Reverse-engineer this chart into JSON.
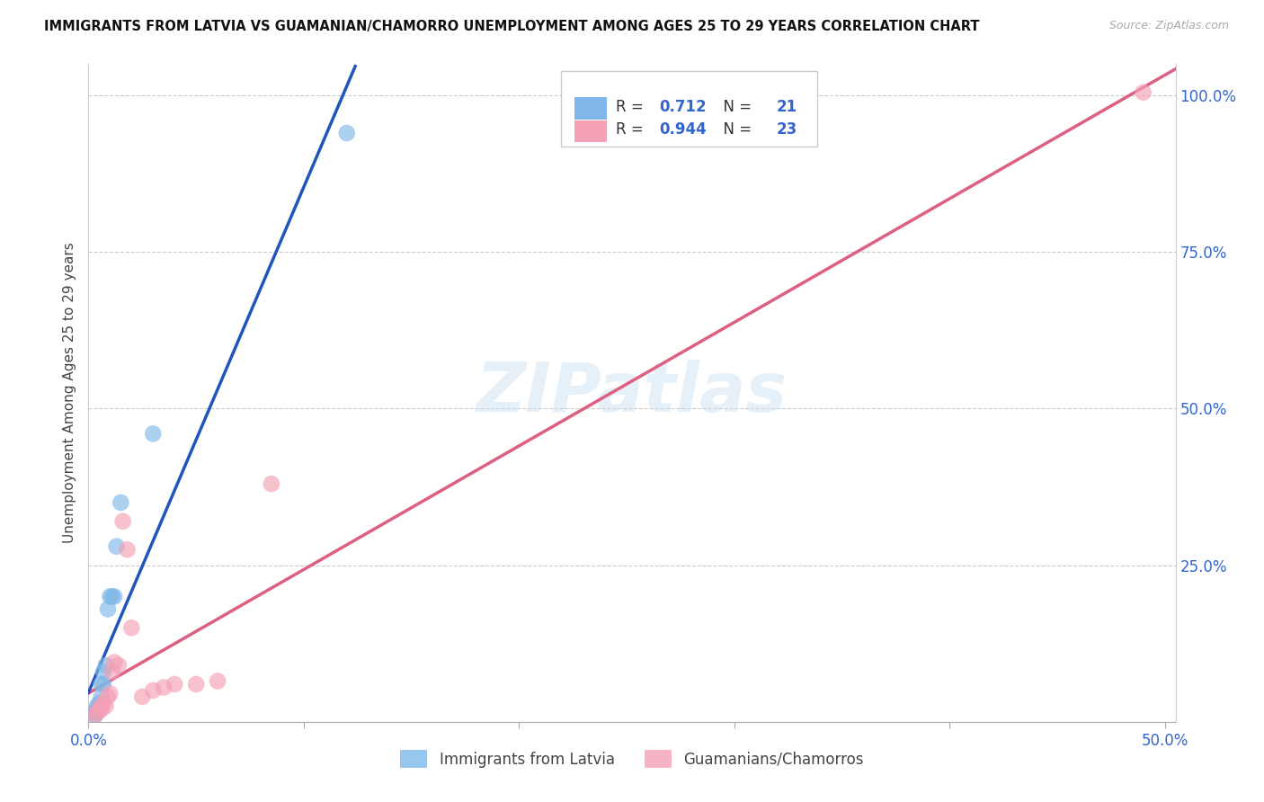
{
  "title": "IMMIGRANTS FROM LATVIA VS GUAMANIAN/CHAMORRO UNEMPLOYMENT AMONG AGES 25 TO 29 YEARS CORRELATION CHART",
  "source": "Source: ZipAtlas.com",
  "ylabel": "Unemployment Among Ages 25 to 29 years",
  "xlim": [
    0.0,
    0.505
  ],
  "ylim": [
    0.0,
    1.05
  ],
  "background_color": "#ffffff",
  "grid_color": "#cccccc",
  "watermark": "ZIPatlas",
  "blue_R": "0.712",
  "blue_N": "21",
  "pink_R": "0.944",
  "pink_N": "23",
  "blue_color": "#7fb8e8",
  "pink_color": "#f4a0b5",
  "blue_line_color": "#2255bb",
  "pink_line_color": "#dd6080",
  "blue_dash_color": "#aaccee",
  "blue_scatter_x": [
    0.003,
    0.003,
    0.004,
    0.004,
    0.004,
    0.005,
    0.005,
    0.005,
    0.006,
    0.006,
    0.007,
    0.007,
    0.008,
    0.009,
    0.01,
    0.011,
    0.012,
    0.013,
    0.015,
    0.03,
    0.12
  ],
  "blue_scatter_y": [
    0.01,
    0.015,
    0.015,
    0.02,
    0.025,
    0.02,
    0.025,
    0.03,
    0.04,
    0.06,
    0.06,
    0.08,
    0.09,
    0.18,
    0.2,
    0.2,
    0.2,
    0.28,
    0.35,
    0.46,
    0.94
  ],
  "pink_scatter_x": [
    0.003,
    0.004,
    0.005,
    0.006,
    0.006,
    0.007,
    0.008,
    0.009,
    0.01,
    0.011,
    0.012,
    0.014,
    0.016,
    0.018,
    0.02,
    0.025,
    0.03,
    0.035,
    0.04,
    0.05,
    0.06,
    0.085,
    0.49
  ],
  "pink_scatter_y": [
    0.01,
    0.015,
    0.02,
    0.02,
    0.025,
    0.03,
    0.025,
    0.04,
    0.045,
    0.08,
    0.095,
    0.09,
    0.32,
    0.275,
    0.15,
    0.04,
    0.05,
    0.055,
    0.06,
    0.06,
    0.065,
    0.38,
    1.005
  ],
  "yticks_right": [
    0.0,
    0.25,
    0.5,
    0.75,
    1.0
  ],
  "yticklabels_right": [
    "",
    "25.0%",
    "50.0%",
    "75.0%",
    "100.0%"
  ],
  "xticks": [
    0.0,
    0.1,
    0.2,
    0.3,
    0.4,
    0.5
  ],
  "xticklabels": [
    "0.0%",
    "",
    "",
    "",
    "",
    "50.0%"
  ],
  "legend_labels": [
    "Immigrants from Latvia",
    "Guamanians/Chamorros"
  ],
  "tick_color": "#3366cc"
}
